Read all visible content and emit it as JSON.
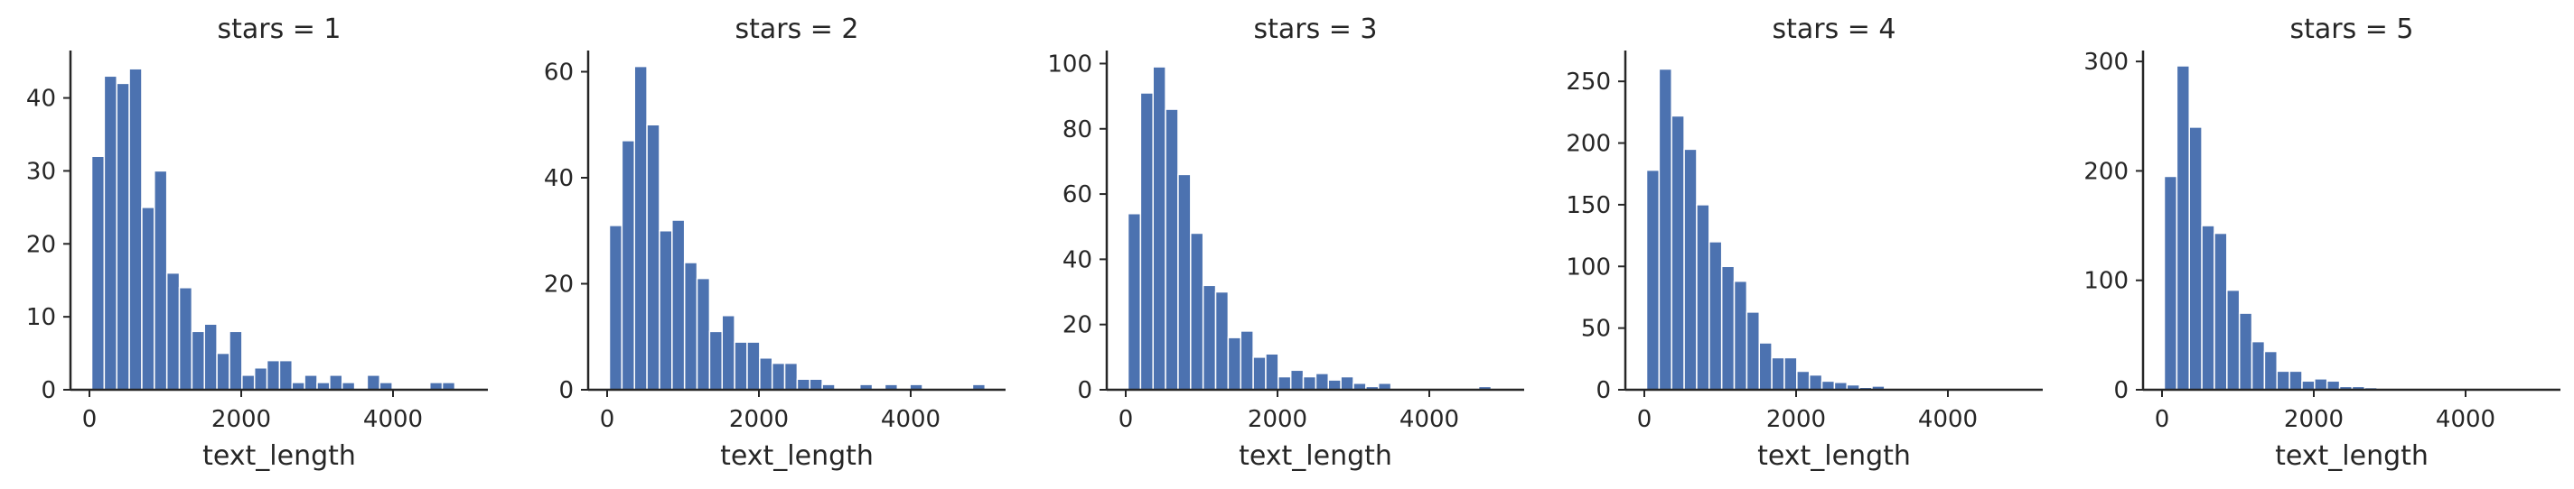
{
  "colors": {
    "bar": "#4c72b0",
    "axis": "#262626",
    "background": "#ffffff"
  },
  "chart_data": [
    {
      "type": "bar",
      "title": "stars = 1",
      "xlabel": "text_length",
      "ylabel": "",
      "xlim": [
        -250,
        5250
      ],
      "ylim": [
        0,
        46.5
      ],
      "xticks": [
        0,
        2000,
        4000
      ],
      "yticks": [
        0,
        10,
        20,
        30,
        40
      ],
      "bin_width": 165,
      "bin_starts": [
        30,
        195,
        360,
        525,
        690,
        855,
        1020,
        1185,
        1350,
        1515,
        1680,
        1845,
        2010,
        2175,
        2340,
        2505,
        2670,
        2835,
        3000,
        3165,
        3330,
        3495,
        3660,
        3825,
        3990,
        4155,
        4320,
        4485,
        4650,
        4815
      ],
      "values": [
        32,
        43,
        42,
        44,
        25,
        30,
        16,
        14,
        8,
        9,
        5,
        8,
        2,
        3,
        4,
        4,
        1,
        2,
        1,
        2,
        1,
        0,
        2,
        1,
        0,
        0,
        0,
        1,
        1,
        0
      ]
    },
    {
      "type": "bar",
      "title": "stars = 2",
      "xlabel": "text_length",
      "ylabel": "",
      "xlim": [
        -250,
        5250
      ],
      "ylim": [
        0,
        64
      ],
      "xticks": [
        0,
        2000,
        4000
      ],
      "yticks": [
        0,
        20,
        40,
        60
      ],
      "bin_width": 165,
      "bin_starts": [
        30,
        195,
        360,
        525,
        690,
        855,
        1020,
        1185,
        1350,
        1515,
        1680,
        1845,
        2010,
        2175,
        2340,
        2505,
        2670,
        2835,
        3000,
        3165,
        3330,
        3495,
        3660,
        3825,
        3990,
        4155,
        4320,
        4485,
        4650,
        4815
      ],
      "values": [
        31,
        47,
        61,
        50,
        30,
        32,
        24,
        21,
        11,
        14,
        9,
        9,
        6,
        5,
        5,
        2,
        2,
        1,
        0,
        0,
        1,
        0,
        1,
        0,
        1,
        0,
        0,
        0,
        0,
        1
      ]
    },
    {
      "type": "bar",
      "title": "stars = 3",
      "xlabel": "text_length",
      "ylabel": "",
      "xlim": [
        -250,
        5250
      ],
      "ylim": [
        0,
        104
      ],
      "xticks": [
        0,
        2000,
        4000
      ],
      "yticks": [
        0,
        20,
        40,
        60,
        80,
        100
      ],
      "bin_width": 165,
      "bin_starts": [
        30,
        195,
        360,
        525,
        690,
        855,
        1020,
        1185,
        1350,
        1515,
        1680,
        1845,
        2010,
        2175,
        2340,
        2505,
        2670,
        2835,
        3000,
        3165,
        3330,
        3495,
        3660,
        3825,
        3990,
        4155,
        4320,
        4485,
        4650,
        4815
      ],
      "values": [
        54,
        91,
        99,
        86,
        66,
        48,
        32,
        30,
        16,
        18,
        10,
        11,
        4,
        6,
        4,
        5,
        3,
        4,
        2,
        1,
        2,
        0,
        0,
        0,
        0,
        0,
        0,
        0,
        1,
        0
      ]
    },
    {
      "type": "bar",
      "title": "stars = 4",
      "xlabel": "text_length",
      "ylabel": "",
      "xlim": [
        -250,
        5250
      ],
      "ylim": [
        0,
        275
      ],
      "xticks": [
        0,
        2000,
        4000
      ],
      "yticks": [
        0,
        50,
        100,
        150,
        200,
        250
      ],
      "bin_width": 165,
      "bin_starts": [
        30,
        195,
        360,
        525,
        690,
        855,
        1020,
        1185,
        1350,
        1515,
        1680,
        1845,
        2010,
        2175,
        2340,
        2505,
        2670,
        2835,
        3000,
        3165,
        3330,
        3495,
        3660,
        3825,
        3990,
        4155,
        4320,
        4485,
        4650,
        4815
      ],
      "values": [
        178,
        260,
        222,
        195,
        150,
        120,
        100,
        88,
        63,
        38,
        26,
        26,
        15,
        12,
        7,
        6,
        4,
        2,
        3,
        1,
        1,
        0,
        0,
        0,
        0,
        0,
        0,
        0,
        0,
        1
      ]
    },
    {
      "type": "bar",
      "title": "stars = 5",
      "xlabel": "text_length",
      "ylabel": "",
      "xlim": [
        -250,
        5250
      ],
      "ylim": [
        0,
        310
      ],
      "xticks": [
        0,
        2000,
        4000
      ],
      "yticks": [
        0,
        100,
        200,
        300
      ],
      "bin_width": 165,
      "bin_starts": [
        30,
        195,
        360,
        525,
        690,
        855,
        1020,
        1185,
        1350,
        1515,
        1680,
        1845,
        2010,
        2175,
        2340,
        2505,
        2670,
        2835,
        3000,
        3165,
        3330,
        3495,
        3660,
        3825,
        3990,
        4155,
        4320,
        4485,
        4650,
        4815
      ],
      "values": [
        195,
        296,
        240,
        150,
        143,
        91,
        70,
        44,
        35,
        17,
        17,
        8,
        10,
        8,
        3,
        3,
        2,
        1,
        1,
        0,
        0,
        0,
        0,
        0,
        0,
        0,
        0,
        0,
        0,
        0
      ]
    }
  ]
}
